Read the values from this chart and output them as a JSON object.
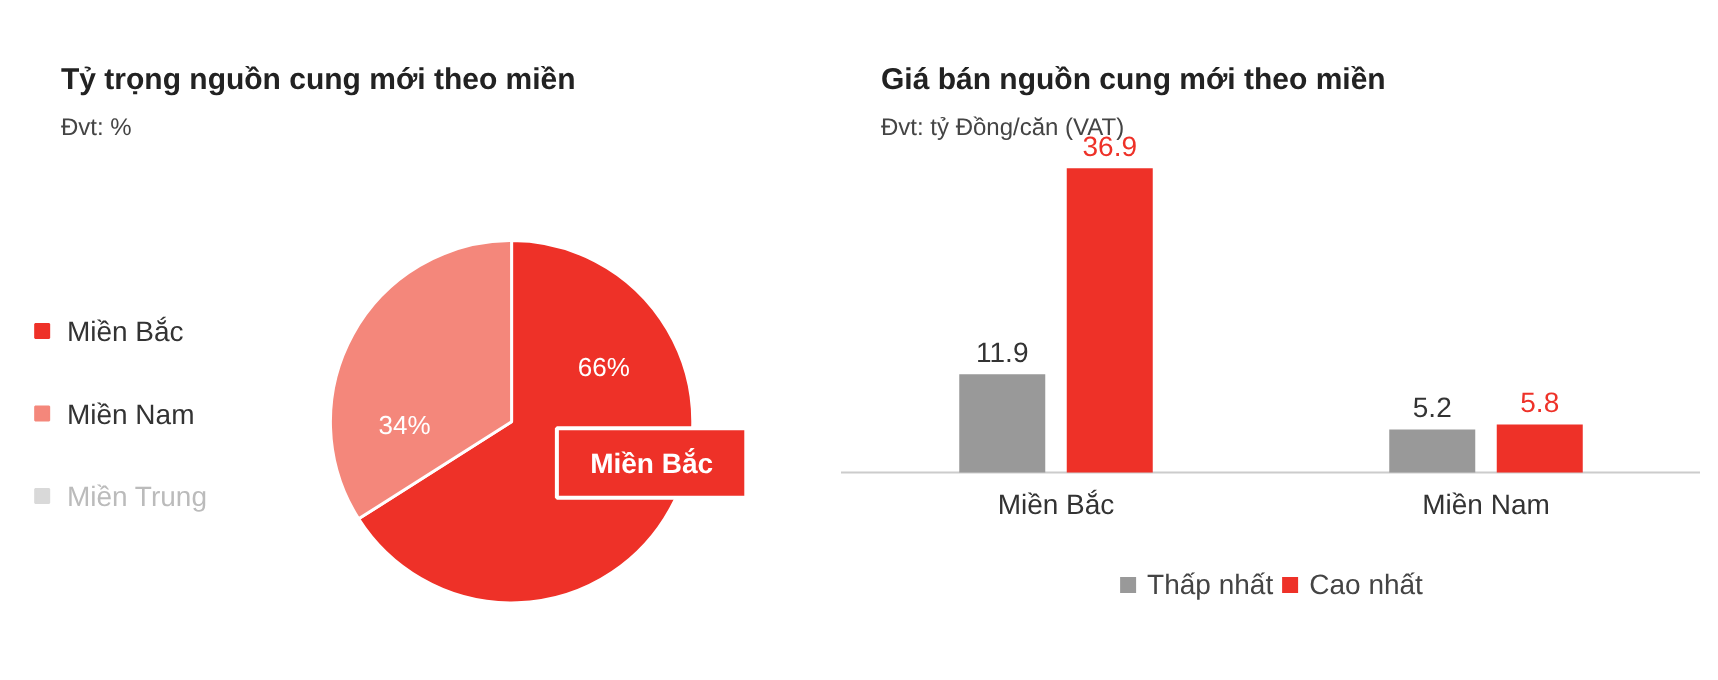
{
  "chart_data": [
    {
      "type": "pie",
      "title": "Tỷ trọng nguồn cung mới theo miền",
      "subtitle": "Đvt: %",
      "categories": [
        "Miền Bắc",
        "Miền Nam",
        "Miền Trung"
      ],
      "values": [
        66,
        34,
        null
      ],
      "colors": [
        "#ee3128",
        "#f4877b",
        "#d9d9d9"
      ],
      "value_labels": [
        "66%",
        "34%",
        null
      ],
      "annotations": [
        "Miền Bắc"
      ],
      "legend": "left"
    },
    {
      "type": "bar",
      "title": "Giá bán nguồn cung mới theo miền",
      "subtitle": "Đvt: tỷ Đồng/căn (VAT)",
      "categories": [
        "Miền Bắc",
        "Miền Nam"
      ],
      "series": [
        {
          "name": "Thấp nhất",
          "color": "#999999",
          "values": [
            11.9,
            5.2
          ]
        },
        {
          "name": "Cao nhất",
          "color": "#ee3128",
          "values": [
            36.9,
            5.8
          ]
        }
      ],
      "data_labels": true,
      "legend": "bottom",
      "grid": false
    }
  ]
}
